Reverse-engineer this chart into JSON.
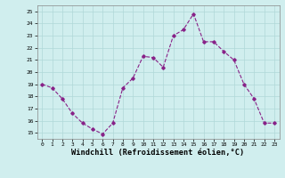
{
  "x": [
    0,
    1,
    2,
    3,
    4,
    5,
    6,
    7,
    8,
    9,
    10,
    11,
    12,
    13,
    14,
    15,
    16,
    17,
    18,
    19,
    20,
    21,
    22,
    23
  ],
  "y": [
    19.0,
    18.7,
    17.8,
    16.6,
    15.8,
    15.3,
    14.9,
    15.8,
    18.7,
    19.5,
    21.3,
    21.2,
    20.4,
    23.0,
    23.5,
    24.8,
    22.5,
    22.5,
    21.7,
    21.0,
    19.0,
    17.8,
    15.8,
    15.8
  ],
  "line_color": "#882288",
  "marker": "D",
  "marker_size": 1.8,
  "bg_color": "#d0eeee",
  "grid_color": "#b0d8d8",
  "xlabel": "Windchill (Refroidissement éolien,°C)",
  "xlabel_fontsize": 6.2,
  "yticks": [
    15,
    16,
    17,
    18,
    19,
    20,
    21,
    22,
    23,
    24,
    25
  ],
  "xticks": [
    0,
    1,
    2,
    3,
    4,
    5,
    6,
    7,
    8,
    9,
    10,
    11,
    12,
    13,
    14,
    15,
    16,
    17,
    18,
    19,
    20,
    21,
    22,
    23
  ],
  "ylim": [
    14.5,
    25.5
  ],
  "xlim": [
    -0.5,
    23.5
  ]
}
